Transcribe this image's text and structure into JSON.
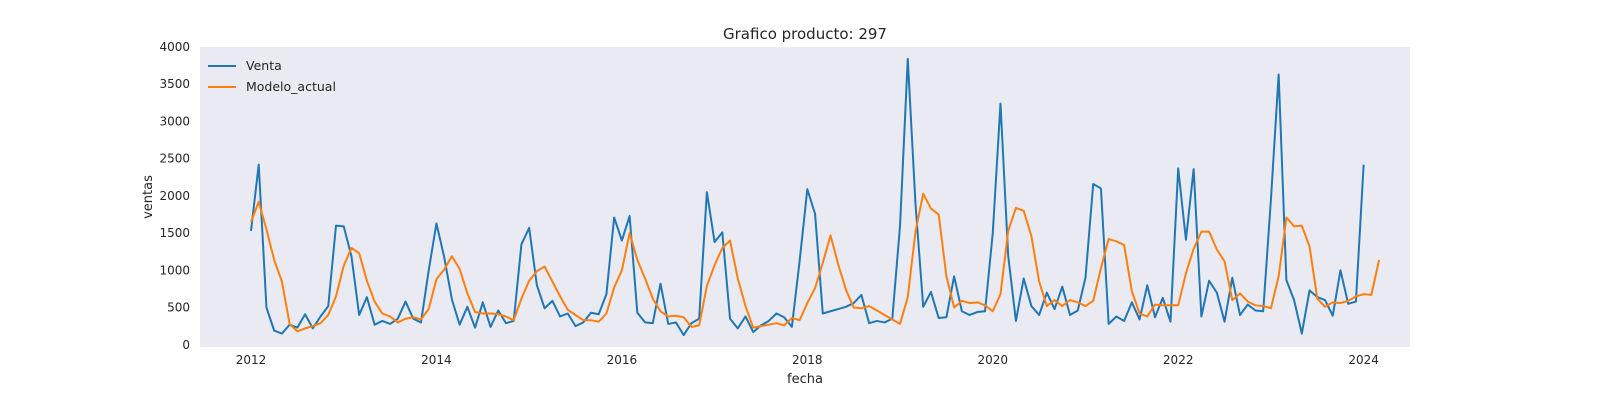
{
  "chart_data": {
    "type": "line",
    "title": "Grafico producto: 297",
    "xlabel": "fecha",
    "ylabel": "ventas",
    "xlim": [
      2011.45,
      2024.5
    ],
    "ylim": [
      -30,
      4000
    ],
    "xticks": [
      2012,
      2014,
      2016,
      2018,
      2020,
      2022,
      2024
    ],
    "yticks": [
      0,
      500,
      1000,
      1500,
      2000,
      2500,
      3000,
      3500,
      4000
    ],
    "grid": false,
    "legend_position": "top-left",
    "x_start_year": 2012,
    "series": [
      {
        "name": "Venta",
        "color": "#1f77b4",
        "values": [
          1530,
          2420,
          500,
          190,
          150,
          270,
          230,
          410,
          220,
          380,
          520,
          1600,
          1590,
          1190,
          400,
          640,
          270,
          320,
          280,
          350,
          580,
          350,
          300,
          1000,
          1630,
          1180,
          610,
          270,
          510,
          230,
          570,
          240,
          460,
          290,
          320,
          1350,
          1570,
          800,
          490,
          590,
          380,
          420,
          250,
          300,
          430,
          410,
          680,
          1710,
          1400,
          1730,
          430,
          300,
          290,
          820,
          280,
          300,
          130,
          290,
          350,
          2050,
          1380,
          1510,
          350,
          220,
          380,
          170,
          260,
          320,
          420,
          370,
          240,
          1120,
          2090,
          1760,
          420,
          450,
          480,
          510,
          560,
          670,
          290,
          320,
          300,
          350,
          1600,
          3840,
          1890,
          510,
          710,
          360,
          370,
          920,
          450,
          400,
          440,
          450,
          1500,
          3240,
          1190,
          320,
          890,
          520,
          400,
          700,
          480,
          780,
          400,
          460,
          900,
          2160,
          2100,
          280,
          380,
          320,
          570,
          340,
          800,
          370,
          630,
          310,
          2370,
          1410,
          2360,
          380,
          860,
          700,
          310,
          900,
          400,
          540,
          460,
          450,
          1950,
          3630,
          870,
          600,
          150,
          730,
          640,
          600,
          390,
          1000,
          550,
          580,
          2420
        ]
      },
      {
        "name": "Modelo_actual",
        "color": "#ff7f0e",
        "values": [
          1650,
          1920,
          1550,
          1140,
          850,
          280,
          180,
          220,
          250,
          290,
          400,
          650,
          1060,
          1300,
          1230,
          860,
          580,
          420,
          380,
          300,
          350,
          370,
          340,
          480,
          880,
          1010,
          1190,
          1020,
          690,
          440,
          420,
          420,
          410,
          380,
          330,
          620,
          860,
          990,
          1050,
          850,
          650,
          470,
          400,
          330,
          330,
          310,
          420,
          770,
          1000,
          1500,
          1140,
          890,
          620,
          450,
          380,
          390,
          370,
          240,
          260,
          790,
          1070,
          1300,
          1400,
          890,
          520,
          230,
          250,
          270,
          290,
          260,
          360,
          330,
          560,
          760,
          1100,
          1470,
          1080,
          740,
          500,
          490,
          520,
          460,
          400,
          340,
          280,
          640,
          1520,
          2030,
          1830,
          1750,
          920,
          500,
          590,
          560,
          570,
          530,
          450,
          680,
          1530,
          1840,
          1800,
          1460,
          850,
          520,
          600,
          520,
          600,
          570,
          520,
          590,
          1030,
          1420,
          1390,
          1340,
          720,
          420,
          380,
          540,
          530,
          530,
          530,
          960,
          1290,
          1520,
          1520,
          1280,
          1120,
          600,
          690,
          580,
          530,
          520,
          490,
          920,
          1710,
          1590,
          1600,
          1320,
          620,
          510,
          570,
          560,
          590,
          650,
          680,
          670,
          1140
        ]
      }
    ]
  }
}
